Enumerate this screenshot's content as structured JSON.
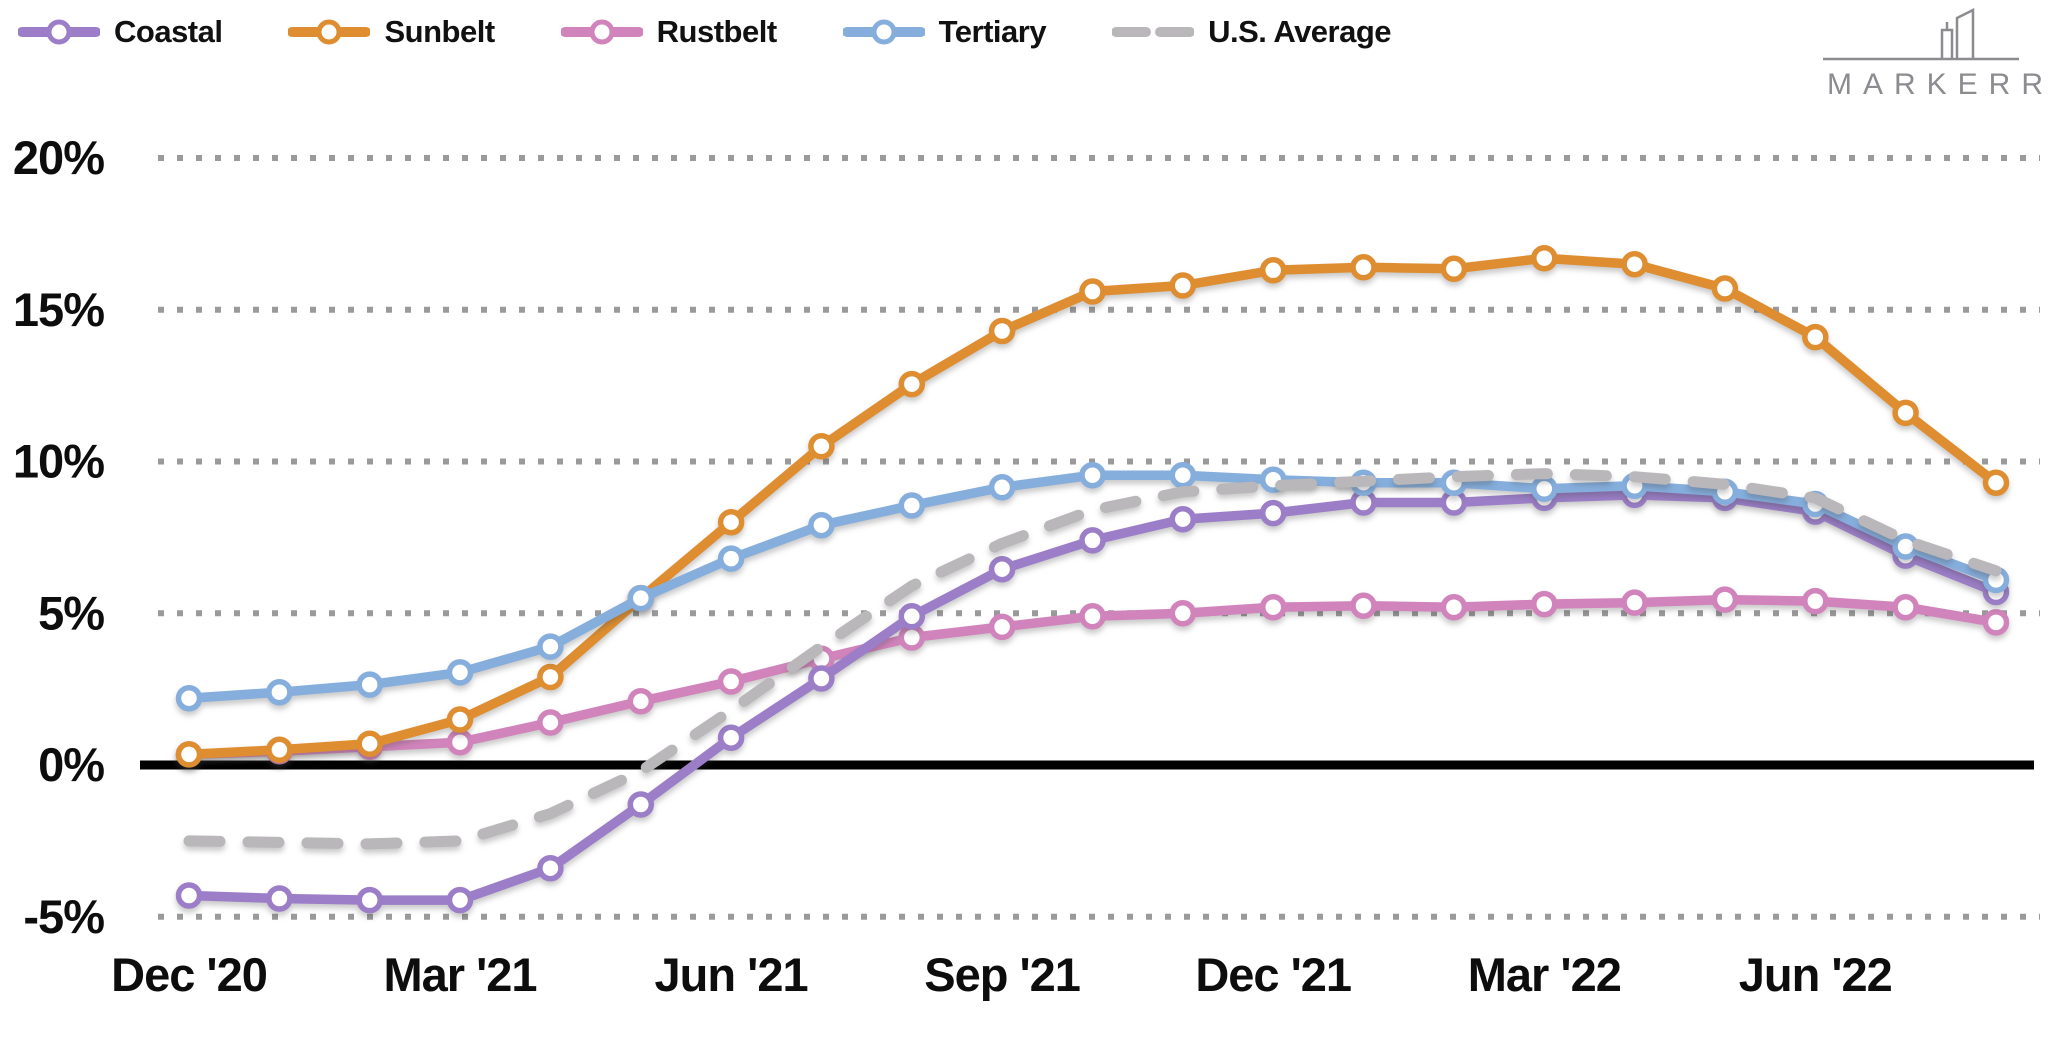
{
  "brand": {
    "name": "MARKERR"
  },
  "legend": {
    "items": [
      {
        "label": "Coastal"
      },
      {
        "label": "Sunbelt"
      },
      {
        "label": "Rustbelt"
      },
      {
        "label": "Tertiary"
      },
      {
        "label": "U.S. Average"
      }
    ]
  },
  "chart_data": {
    "type": "line",
    "title": "",
    "xlabel": "",
    "ylabel": "",
    "grid": "dotted-horizontal",
    "legend_position": "top-left",
    "ylim": [
      -5,
      20
    ],
    "zero_line": true,
    "categories": [
      "Dec '20",
      "Jan '21",
      "Feb '21",
      "Mar '21",
      "Apr '21",
      "May '21",
      "Jun '21",
      "Jul '21",
      "Aug '21",
      "Sep '21",
      "Oct '21",
      "Nov '21",
      "Dec '21",
      "Jan '22",
      "Feb '22",
      "Mar '22",
      "Apr '22",
      "May '22",
      "Jun '22",
      "Jul '22",
      "Aug '22"
    ],
    "x_tick_indices": [
      0,
      3,
      6,
      9,
      12,
      15,
      18
    ],
    "x_tick_labels": [
      "Dec '20",
      "Mar '21",
      "Jun '21",
      "Sep '21",
      "Dec '21",
      "Mar '22",
      "Jun '22"
    ],
    "y_ticks": [
      {
        "value": 20,
        "label": "20%"
      },
      {
        "value": 15,
        "label": "15%"
      },
      {
        "value": 10,
        "label": "10%"
      },
      {
        "value": 5,
        "label": "5%"
      },
      {
        "value": 0,
        "label": "0%"
      },
      {
        "value": -5,
        "label": "-5%"
      }
    ],
    "series": [
      {
        "name": "Coastal",
        "color": "#9b7ec7",
        "dashed": false,
        "values": [
          -4.3,
          -4.4,
          -4.45,
          -4.45,
          -3.4,
          -1.3,
          0.9,
          2.85,
          4.9,
          6.45,
          7.4,
          8.1,
          8.3,
          8.65,
          8.65,
          8.8,
          8.9,
          8.8,
          8.35,
          6.9,
          5.7
        ]
      },
      {
        "name": "Sunbelt",
        "color": "#de8e30",
        "dashed": false,
        "values": [
          0.35,
          0.5,
          0.7,
          1.5,
          2.9,
          5.5,
          8.0,
          10.5,
          12.55,
          14.3,
          15.6,
          15.8,
          16.3,
          16.4,
          16.35,
          16.7,
          16.5,
          15.7,
          14.1,
          11.6,
          9.3
        ]
      },
      {
        "name": "Rustbelt",
        "color": "#d184bb",
        "dashed": false,
        "values": [
          0.35,
          0.45,
          0.6,
          0.75,
          1.4,
          2.1,
          2.75,
          3.5,
          4.2,
          4.55,
          4.9,
          5.0,
          5.2,
          5.25,
          5.2,
          5.3,
          5.35,
          5.45,
          5.4,
          5.2,
          4.7
        ]
      },
      {
        "name": "Tertiary",
        "color": "#85aedd",
        "dashed": false,
        "values": [
          2.2,
          2.4,
          2.65,
          3.05,
          3.9,
          5.5,
          6.8,
          7.9,
          8.55,
          9.15,
          9.55,
          9.55,
          9.4,
          9.3,
          9.3,
          9.1,
          9.2,
          9.0,
          8.6,
          7.2,
          6.1
        ]
      },
      {
        "name": "U.S. Average",
        "color": "#b9b7b9",
        "dashed": true,
        "values": [
          -2.5,
          -2.55,
          -2.6,
          -2.5,
          -1.6,
          -0.2,
          1.8,
          3.9,
          5.9,
          7.3,
          8.4,
          9.0,
          9.2,
          9.35,
          9.5,
          9.6,
          9.5,
          9.25,
          8.8,
          7.4,
          6.4
        ]
      }
    ],
    "colors": {
      "grid": "#9a9a9a",
      "zero_line": "#000000",
      "marker_fill": "#ffffff",
      "text": "#0d0d0d",
      "logo": "#8e8b90"
    }
  }
}
